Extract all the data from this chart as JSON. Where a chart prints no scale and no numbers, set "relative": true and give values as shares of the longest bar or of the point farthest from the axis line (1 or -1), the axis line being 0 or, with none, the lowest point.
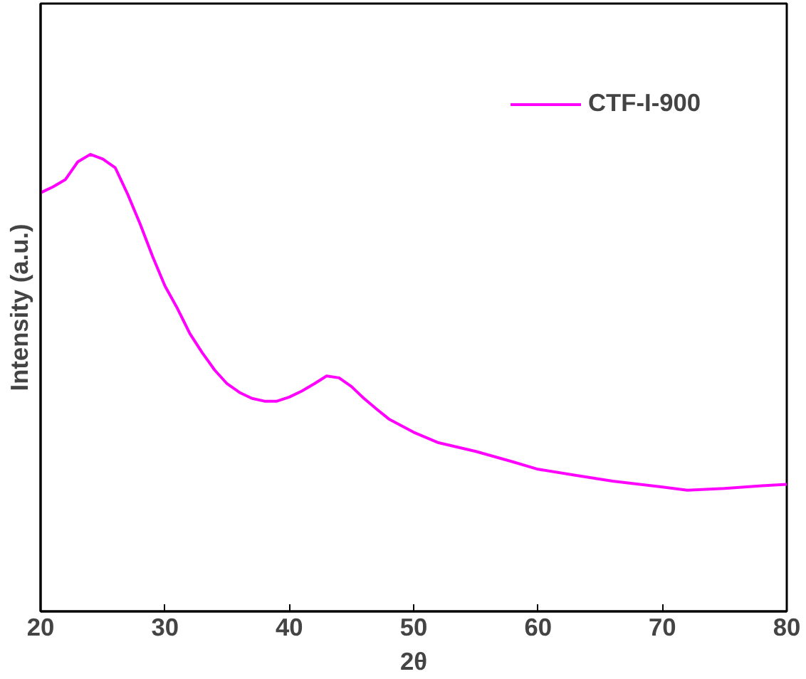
{
  "chart_data": {
    "type": "line",
    "xlabel": "2θ",
    "ylabel": "Intensity (a.u.)",
    "relative": true,
    "xlim": [
      20,
      80
    ],
    "xticks": [
      20,
      30,
      40,
      50,
      60,
      70,
      80
    ],
    "tick_labels": "x",
    "legend": "top right",
    "series": [
      {
        "name": "CTF-I-900",
        "color": "#ff00ff",
        "x": [
          20,
          21,
          22,
          23,
          24,
          25,
          26,
          27,
          28,
          29,
          30,
          31,
          32,
          33,
          34,
          35,
          36,
          37,
          38,
          39,
          40,
          41,
          42,
          43,
          44,
          45,
          46,
          47,
          48,
          50,
          52,
          55,
          58,
          60,
          63,
          66,
          70,
          72,
          75,
          78,
          80
        ],
        "values": [
          0.916,
          0.929,
          0.945,
          0.984,
          1,
          0.99,
          0.971,
          0.913,
          0.848,
          0.777,
          0.712,
          0.663,
          0.608,
          0.566,
          0.528,
          0.498,
          0.479,
          0.466,
          0.46,
          0.46,
          0.469,
          0.482,
          0.498,
          0.515,
          0.511,
          0.492,
          0.466,
          0.443,
          0.421,
          0.392,
          0.369,
          0.35,
          0.327,
          0.311,
          0.298,
          0.285,
          0.272,
          0.265,
          0.269,
          0.275,
          0.278
        ]
      }
    ]
  }
}
